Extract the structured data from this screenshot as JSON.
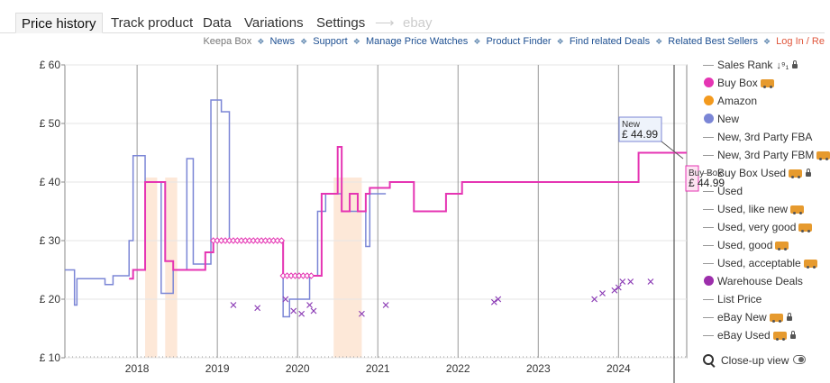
{
  "tabs": [
    {
      "label": "Price history",
      "active": true
    },
    {
      "label": "Track product"
    },
    {
      "label": "Data"
    },
    {
      "label": "Variations"
    },
    {
      "label": "Settings"
    },
    {
      "label": "ebay",
      "disabled": true
    }
  ],
  "toplinks": {
    "keepa_box": "Keepa Box",
    "items": [
      "News",
      "Support",
      "Manage Price Watches",
      "Product Finder",
      "Find related Deals",
      "Related Best Sellers"
    ],
    "login": "Log In / Re"
  },
  "chart_data": {
    "type": "line",
    "y_ticks": [
      "£ 10",
      "£ 20",
      "£ 30",
      "£ 40",
      "£ 50",
      "£ 60"
    ],
    "ylim": [
      10,
      60
    ],
    "x_ticks": [
      "2018",
      "2019",
      "2020",
      "2021",
      "2022",
      "2023",
      "2024"
    ],
    "series": [
      {
        "name": "New",
        "color": "#7b86d6",
        "points": [
          [
            2017.1,
            25
          ],
          [
            2017.2,
            25
          ],
          [
            2017.22,
            19
          ],
          [
            2017.25,
            23.5
          ],
          [
            2017.4,
            23.5
          ],
          [
            2017.6,
            22.5
          ],
          [
            2017.7,
            24
          ],
          [
            2017.85,
            24
          ],
          [
            2017.9,
            30
          ],
          [
            2017.95,
            44.5
          ],
          [
            2018.05,
            44.5
          ],
          [
            2018.1,
            40
          ],
          [
            2018.27,
            40
          ],
          [
            2018.3,
            21
          ],
          [
            2018.4,
            21
          ],
          [
            2018.45,
            25
          ],
          [
            2018.6,
            25
          ],
          [
            2018.62,
            44
          ],
          [
            2018.7,
            26
          ],
          [
            2018.9,
            26
          ],
          [
            2018.92,
            54
          ],
          [
            2019.0,
            54
          ],
          [
            2019.05,
            52
          ],
          [
            2019.1,
            52
          ],
          [
            2019.15,
            30
          ],
          [
            2019.8,
            30
          ],
          [
            2019.82,
            17
          ],
          [
            2019.9,
            20
          ],
          [
            2020.15,
            24
          ],
          [
            2020.25,
            35
          ],
          [
            2020.35,
            38
          ],
          [
            2020.45,
            38
          ],
          [
            2020.55,
            35
          ],
          [
            2020.8,
            35
          ],
          [
            2020.85,
            29
          ],
          [
            2020.9,
            38
          ],
          [
            2021.1,
            38
          ]
        ]
      },
      {
        "name": "Buy Box",
        "color": "#e535b3",
        "points": [
          [
            2017.9,
            23.5
          ],
          [
            2017.95,
            25
          ],
          [
            2018.1,
            40
          ],
          [
            2018.2,
            40
          ],
          [
            2018.35,
            26.5
          ],
          [
            2018.45,
            25
          ],
          [
            2018.75,
            25
          ],
          [
            2018.85,
            28
          ],
          [
            2018.95,
            30
          ],
          [
            2019.8,
            30
          ],
          [
            2019.82,
            24
          ],
          [
            2020.2,
            24
          ],
          [
            2020.3,
            38
          ],
          [
            2020.4,
            38
          ],
          [
            2020.5,
            46
          ],
          [
            2020.55,
            35
          ],
          [
            2020.65,
            38
          ],
          [
            2020.75,
            35
          ],
          [
            2020.85,
            38
          ],
          [
            2020.9,
            39
          ],
          [
            2021.1,
            39
          ],
          [
            2021.15,
            40
          ],
          [
            2021.4,
            40
          ],
          [
            2021.45,
            35
          ],
          [
            2021.8,
            35
          ],
          [
            2021.85,
            38
          ],
          [
            2022.0,
            38
          ],
          [
            2022.05,
            40
          ],
          [
            2023.3,
            40
          ],
          [
            2024.1,
            40
          ],
          [
            2024.15,
            40
          ],
          [
            2024.25,
            45
          ],
          [
            2024.85,
            45
          ]
        ]
      },
      {
        "name": "eBay New",
        "color": "#8b3bb5",
        "style": "x",
        "points": [
          [
            2019.2,
            19
          ],
          [
            2019.5,
            18.5
          ],
          [
            2019.85,
            20
          ],
          [
            2019.95,
            18
          ],
          [
            2020.05,
            17.5
          ],
          [
            2020.15,
            19
          ],
          [
            2020.2,
            18
          ],
          [
            2020.8,
            17.5
          ],
          [
            2021.1,
            19
          ],
          [
            2022.45,
            19.5
          ],
          [
            2022.5,
            20
          ],
          [
            2023.7,
            20
          ],
          [
            2023.8,
            21
          ],
          [
            2023.95,
            21.5
          ],
          [
            2024.0,
            22
          ],
          [
            2024.05,
            23
          ],
          [
            2024.15,
            23
          ],
          [
            2024.4,
            23
          ]
        ]
      }
    ],
    "annotations": [
      {
        "label": "New",
        "value": "£ 44.99"
      },
      {
        "label": "Buy Box",
        "value": "£ 44.99"
      }
    ]
  },
  "legend": [
    {
      "label": "Sales Rank",
      "marker": "dash",
      "extra": "sort",
      "lock": true
    },
    {
      "label": "Buy Box",
      "marker": "dot",
      "color": "#e535b3",
      "truck": true
    },
    {
      "label": "Amazon",
      "marker": "dot",
      "color": "#f39a1e"
    },
    {
      "label": "New",
      "marker": "dot",
      "color": "#7b86d6"
    },
    {
      "label": "New, 3rd Party FBA",
      "marker": "dash"
    },
    {
      "label": "New, 3rd Party FBM",
      "marker": "dash",
      "truck": true
    },
    {
      "label": "Buy Box Used",
      "marker": "dash",
      "truck": true,
      "lock": true
    },
    {
      "label": "Used",
      "marker": "dash"
    },
    {
      "label": "Used, like new",
      "marker": "dash",
      "truck": true
    },
    {
      "label": "Used, very good",
      "marker": "dash",
      "truck": true
    },
    {
      "label": "Used, good",
      "marker": "dash",
      "truck": true
    },
    {
      "label": "Used, acceptable",
      "marker": "dash",
      "truck": true
    },
    {
      "label": "Warehouse Deals",
      "marker": "dot",
      "color": "#9c2eab"
    },
    {
      "label": "List Price",
      "marker": "dash"
    },
    {
      "label": "eBay New",
      "marker": "dash",
      "truck": true,
      "lock": true
    },
    {
      "label": "eBay Used",
      "marker": "dash",
      "truck": true,
      "lock": true
    }
  ],
  "closeup": {
    "label": "Close-up view",
    "icon": "magnifier-icon"
  }
}
